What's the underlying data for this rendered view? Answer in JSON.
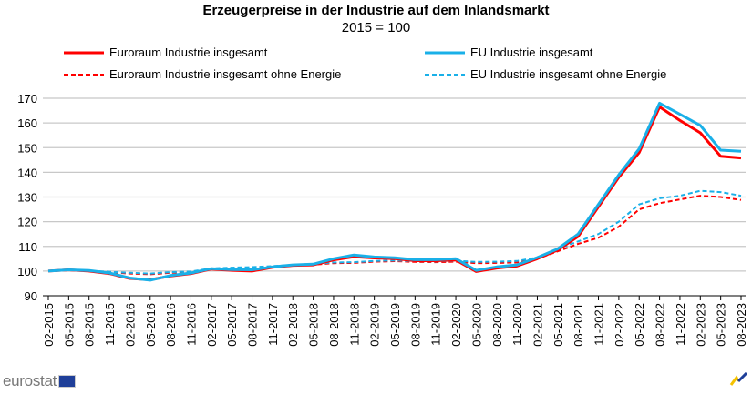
{
  "chart_data": {
    "type": "line",
    "title": "Erzeugerpreise in der Industrie auf dem Inlandsmarkt",
    "subtitle": "2015 = 100",
    "xlabel": "",
    "ylabel": "",
    "ylim": [
      90,
      170
    ],
    "yticks": [
      90,
      100,
      110,
      120,
      130,
      140,
      150,
      160,
      170
    ],
    "grid": true,
    "legend": "top",
    "x": [
      "02-2015",
      "05-2015",
      "08-2015",
      "11-2015",
      "02-2016",
      "05-2016",
      "08-2016",
      "11-2016",
      "02-2017",
      "05-2017",
      "08-2017",
      "11-2017",
      "02-2018",
      "05-2018",
      "08-2018",
      "11-2018",
      "02-2019",
      "05-2019",
      "08-2019",
      "11-2019",
      "02-2020",
      "05-2020",
      "08-2020",
      "11-2020",
      "02-2021",
      "05-2021",
      "08-2021",
      "11-2021",
      "02-2022",
      "05-2022",
      "08-2022",
      "11-2022",
      "02-2023",
      "05-2023",
      "08-2023"
    ],
    "series": [
      {
        "name": "Euroraum Industrie insgesamt",
        "color": "#ff0000",
        "style": "solid",
        "values": [
          100,
          100.5,
          100,
          99,
          97,
          96.5,
          98,
          99,
          100.8,
          100.3,
          100,
          101.5,
          102.3,
          102.5,
          104.5,
          105.8,
          105.3,
          105,
          104.2,
          104.2,
          104.5,
          99.8,
          101.2,
          102,
          105,
          108.5,
          114,
          126,
          138,
          148,
          166.5,
          161,
          156,
          146.5,
          145.8
        ]
      },
      {
        "name": "EU Industrie insgesamt",
        "color": "#1ab0e8",
        "style": "solid",
        "values": [
          100,
          100.5,
          100.2,
          99.2,
          97.2,
          96.3,
          98.2,
          99.2,
          101,
          100.6,
          100.5,
          101.7,
          102.5,
          102.8,
          105,
          106.5,
          105.7,
          105.4,
          104.6,
          104.6,
          105,
          100.3,
          101.7,
          102.5,
          105.5,
          109,
          115,
          127,
          139,
          149.5,
          168,
          163.5,
          159,
          149,
          148.5
        ]
      },
      {
        "name": "Euroraum Industrie insgesamt ohne Energie",
        "color": "#ff0000",
        "style": "dashed",
        "values": [
          100,
          100.3,
          100,
          99.5,
          99,
          98.7,
          99.3,
          99.5,
          100.8,
          101,
          101.2,
          101.7,
          102.2,
          102.6,
          103.2,
          103.3,
          103.8,
          104,
          103.7,
          103.6,
          103.8,
          103.2,
          103.3,
          103.5,
          105,
          108,
          111,
          113.5,
          118,
          125,
          127.5,
          129,
          130.5,
          130,
          128.8
        ]
      },
      {
        "name": "EU Industrie insgesamt ohne Energie",
        "color": "#1ab0e8",
        "style": "dashed",
        "values": [
          100,
          100.4,
          100.1,
          99.7,
          99.3,
          99,
          99.6,
          99.8,
          101.1,
          101.4,
          101.6,
          102,
          102.5,
          102.9,
          103.5,
          103.6,
          104.1,
          104.3,
          104,
          103.9,
          104.2,
          103.7,
          103.8,
          104.1,
          105.5,
          109,
          112,
          115,
          120,
          127,
          129.5,
          130.5,
          132.5,
          132,
          130.5
        ]
      }
    ]
  },
  "footer": {
    "logo_text": "eurostat"
  }
}
